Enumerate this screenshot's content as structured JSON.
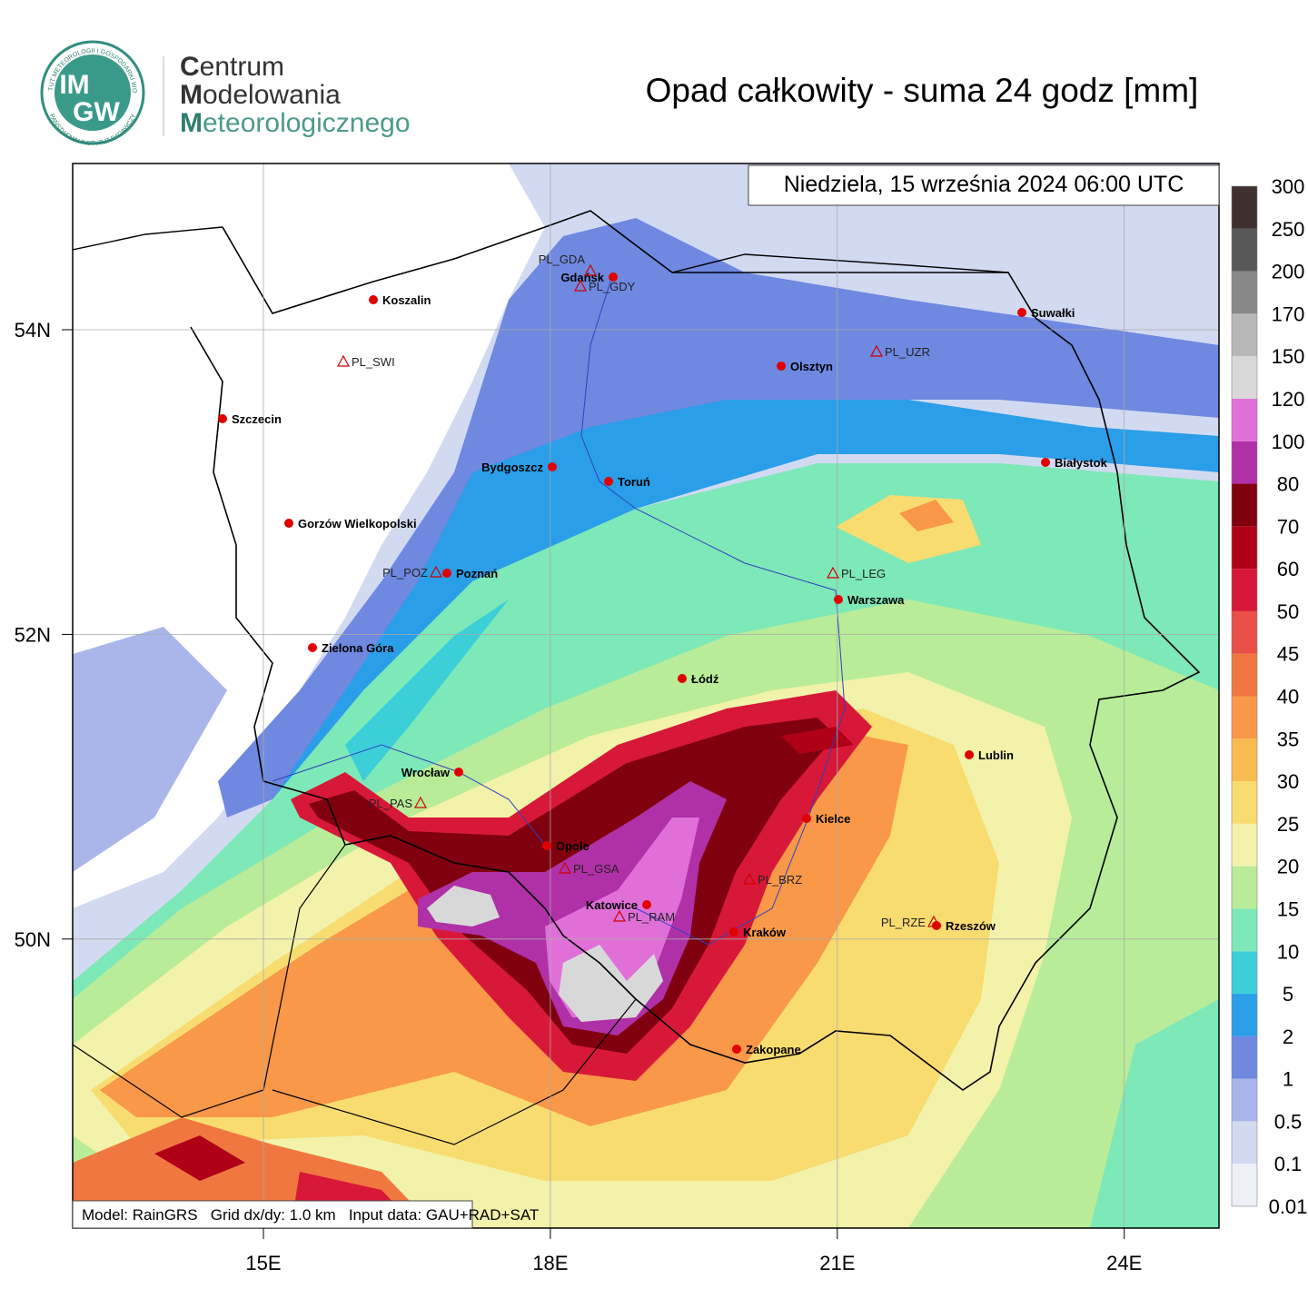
{
  "header": {
    "logo_lines": [
      "IM",
      "GW"
    ],
    "logo_ring_top": "INSTYTUT METEOROLOGII I GOSPODARKI WODNEJ",
    "logo_ring_bottom": "PAŃSTWOWY INSTYTUT BADAWCZY",
    "org_lines": [
      "Centrum",
      "Modelowania",
      "Meteorologicznego"
    ],
    "title": "Opad całkowity - suma 24 godz [mm]"
  },
  "map": {
    "date": "Niedziela, 15 września 2024 06:00 UTC",
    "footer": "Model: RainGRS   Grid dx/dy: 1.0 km   Input data: GAU+RAD+SAT",
    "xticks": [
      {
        "value": 15,
        "label": "15E"
      },
      {
        "value": 18,
        "label": "18E"
      },
      {
        "value": 21,
        "label": "21E"
      },
      {
        "value": 24,
        "label": "24E"
      }
    ],
    "yticks": [
      {
        "value": 54,
        "label": "54N"
      },
      {
        "value": 52,
        "label": "52N"
      },
      {
        "value": 50,
        "label": "50N"
      }
    ],
    "cities": [
      "Koszalin",
      "Gdańsk",
      "Suwałki",
      "Olsztyn",
      "Szczecin",
      "Bydgoszcz",
      "Toruń",
      "Białystok",
      "Gorzów Wielkopolski",
      "Poznań",
      "Warszawa",
      "Zielona Góra",
      "Łódź",
      "Lublin",
      "Wrocław",
      "Kielce",
      "Opole",
      "Katowice",
      "Kraków",
      "Rzeszów",
      "Zakopane"
    ],
    "stations": [
      "PL_GDA",
      "PL_GDY",
      "PL_SWI",
      "PL_UZR",
      "PL_POZ",
      "PL_LEG",
      "PL_PAS",
      "PL_GSA",
      "PL_BRZ",
      "PL_RAM",
      "PL_RZE"
    ]
  },
  "legend": {
    "levels": [
      0.01,
      0.1,
      0.5,
      1,
      2,
      5,
      10,
      15,
      20,
      25,
      30,
      35,
      40,
      45,
      50,
      60,
      70,
      80,
      100,
      120,
      150,
      170,
      200,
      250,
      300
    ],
    "colors": [
      "#eef0f8",
      "#d2daf2",
      "#aab6ea",
      "#6f88e0",
      "#2a9ee8",
      "#3ccfd8",
      "#7de8b8",
      "#b8ec98",
      "#f2f2aa",
      "#f8dc70",
      "#f8bc50",
      "#f89848",
      "#f07840",
      "#e85048",
      "#d81838",
      "#b00018",
      "#800010",
      "#b030a8",
      "#e070d8",
      "#d8d8d8",
      "#b8b8b8",
      "#888888",
      "#585858",
      "#403030"
    ]
  }
}
